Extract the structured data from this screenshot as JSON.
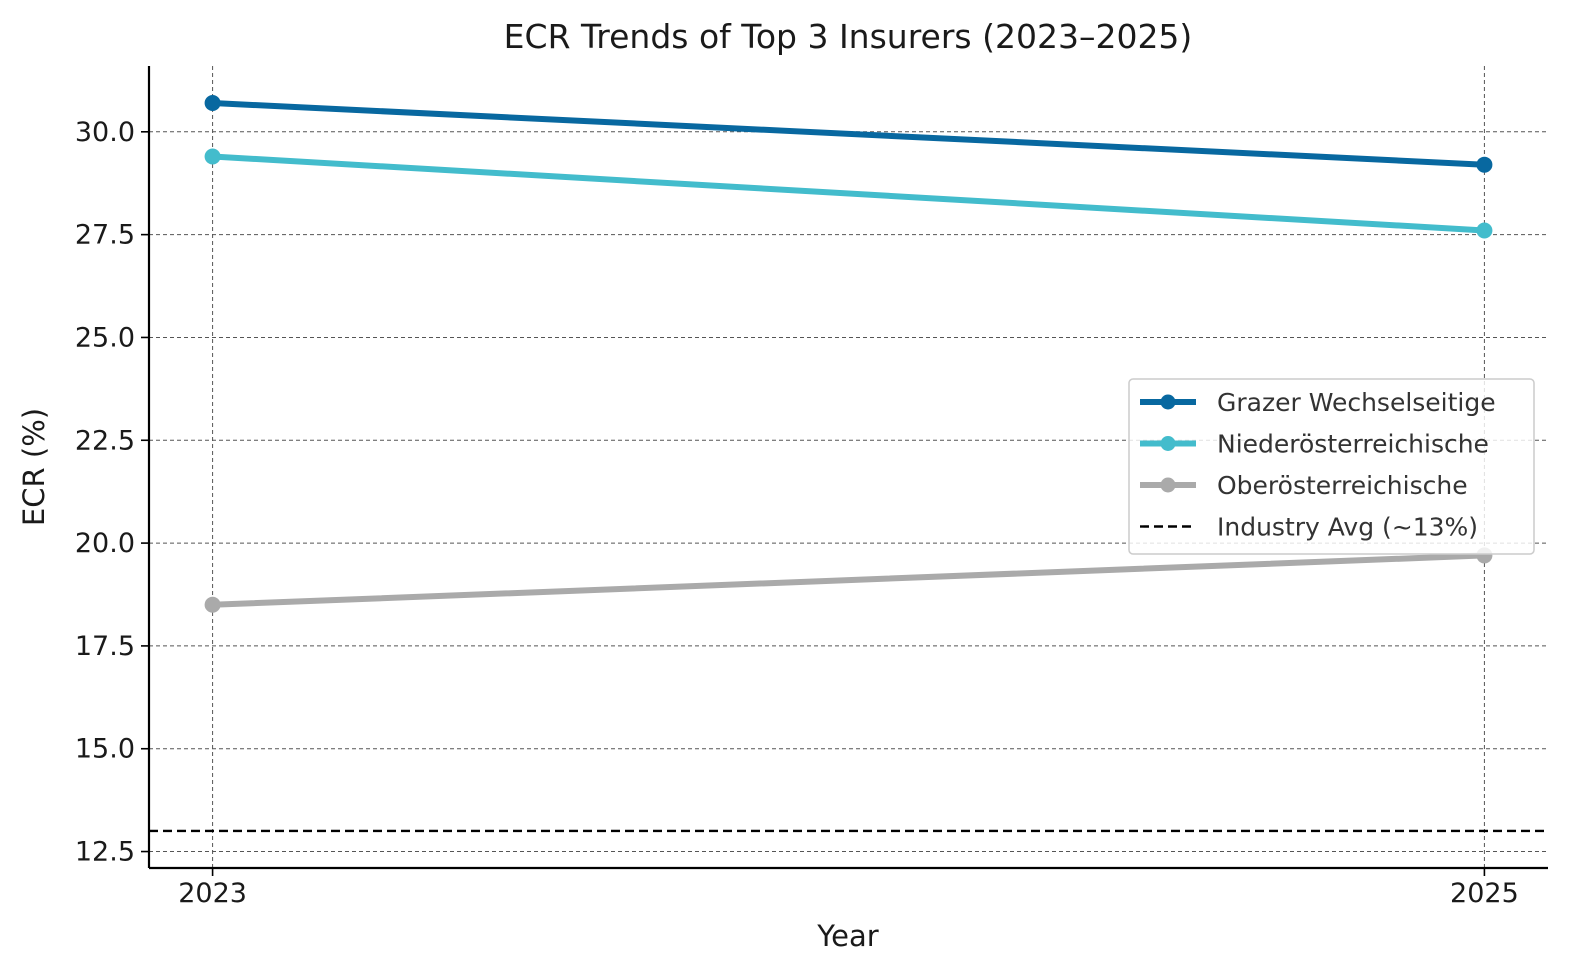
{
  "chart_data": {
    "type": "line",
    "title": "ECR Trends of Top 3 Insurers (2023–2025)",
    "xlabel": "Year",
    "ylabel": "ECR (%)",
    "x": [
      "2023",
      "2025"
    ],
    "x_values": [
      2023,
      2025
    ],
    "xlim": [
      2022.9,
      2025.1
    ],
    "ylim": [
      12.1,
      31.6
    ],
    "y_ticks": [
      12.5,
      15.0,
      17.5,
      20.0,
      22.5,
      25.0,
      27.5,
      30.0
    ],
    "y_tick_labels": [
      "12.5",
      "15.0",
      "17.5",
      "20.0",
      "22.5",
      "25.0",
      "27.5",
      "30.0"
    ],
    "grid": true,
    "legend_position": "center-right",
    "series": [
      {
        "name": "Grazer Wechselseitige",
        "values": [
          30.7,
          29.2
        ],
        "color": "#0868a0",
        "marker": "circle"
      },
      {
        "name": "Niederösterreichische",
        "values": [
          29.4,
          27.6
        ],
        "color": "#43bccc",
        "marker": "circle"
      },
      {
        "name": "Oberösterreichische",
        "values": [
          18.5,
          19.7
        ],
        "color": "#aaaaaa",
        "marker": "circle"
      }
    ],
    "reference_lines": [
      {
        "name": "Industry Avg (~13%)",
        "value": 13,
        "color": "#000000",
        "style": "dashed"
      }
    ]
  }
}
